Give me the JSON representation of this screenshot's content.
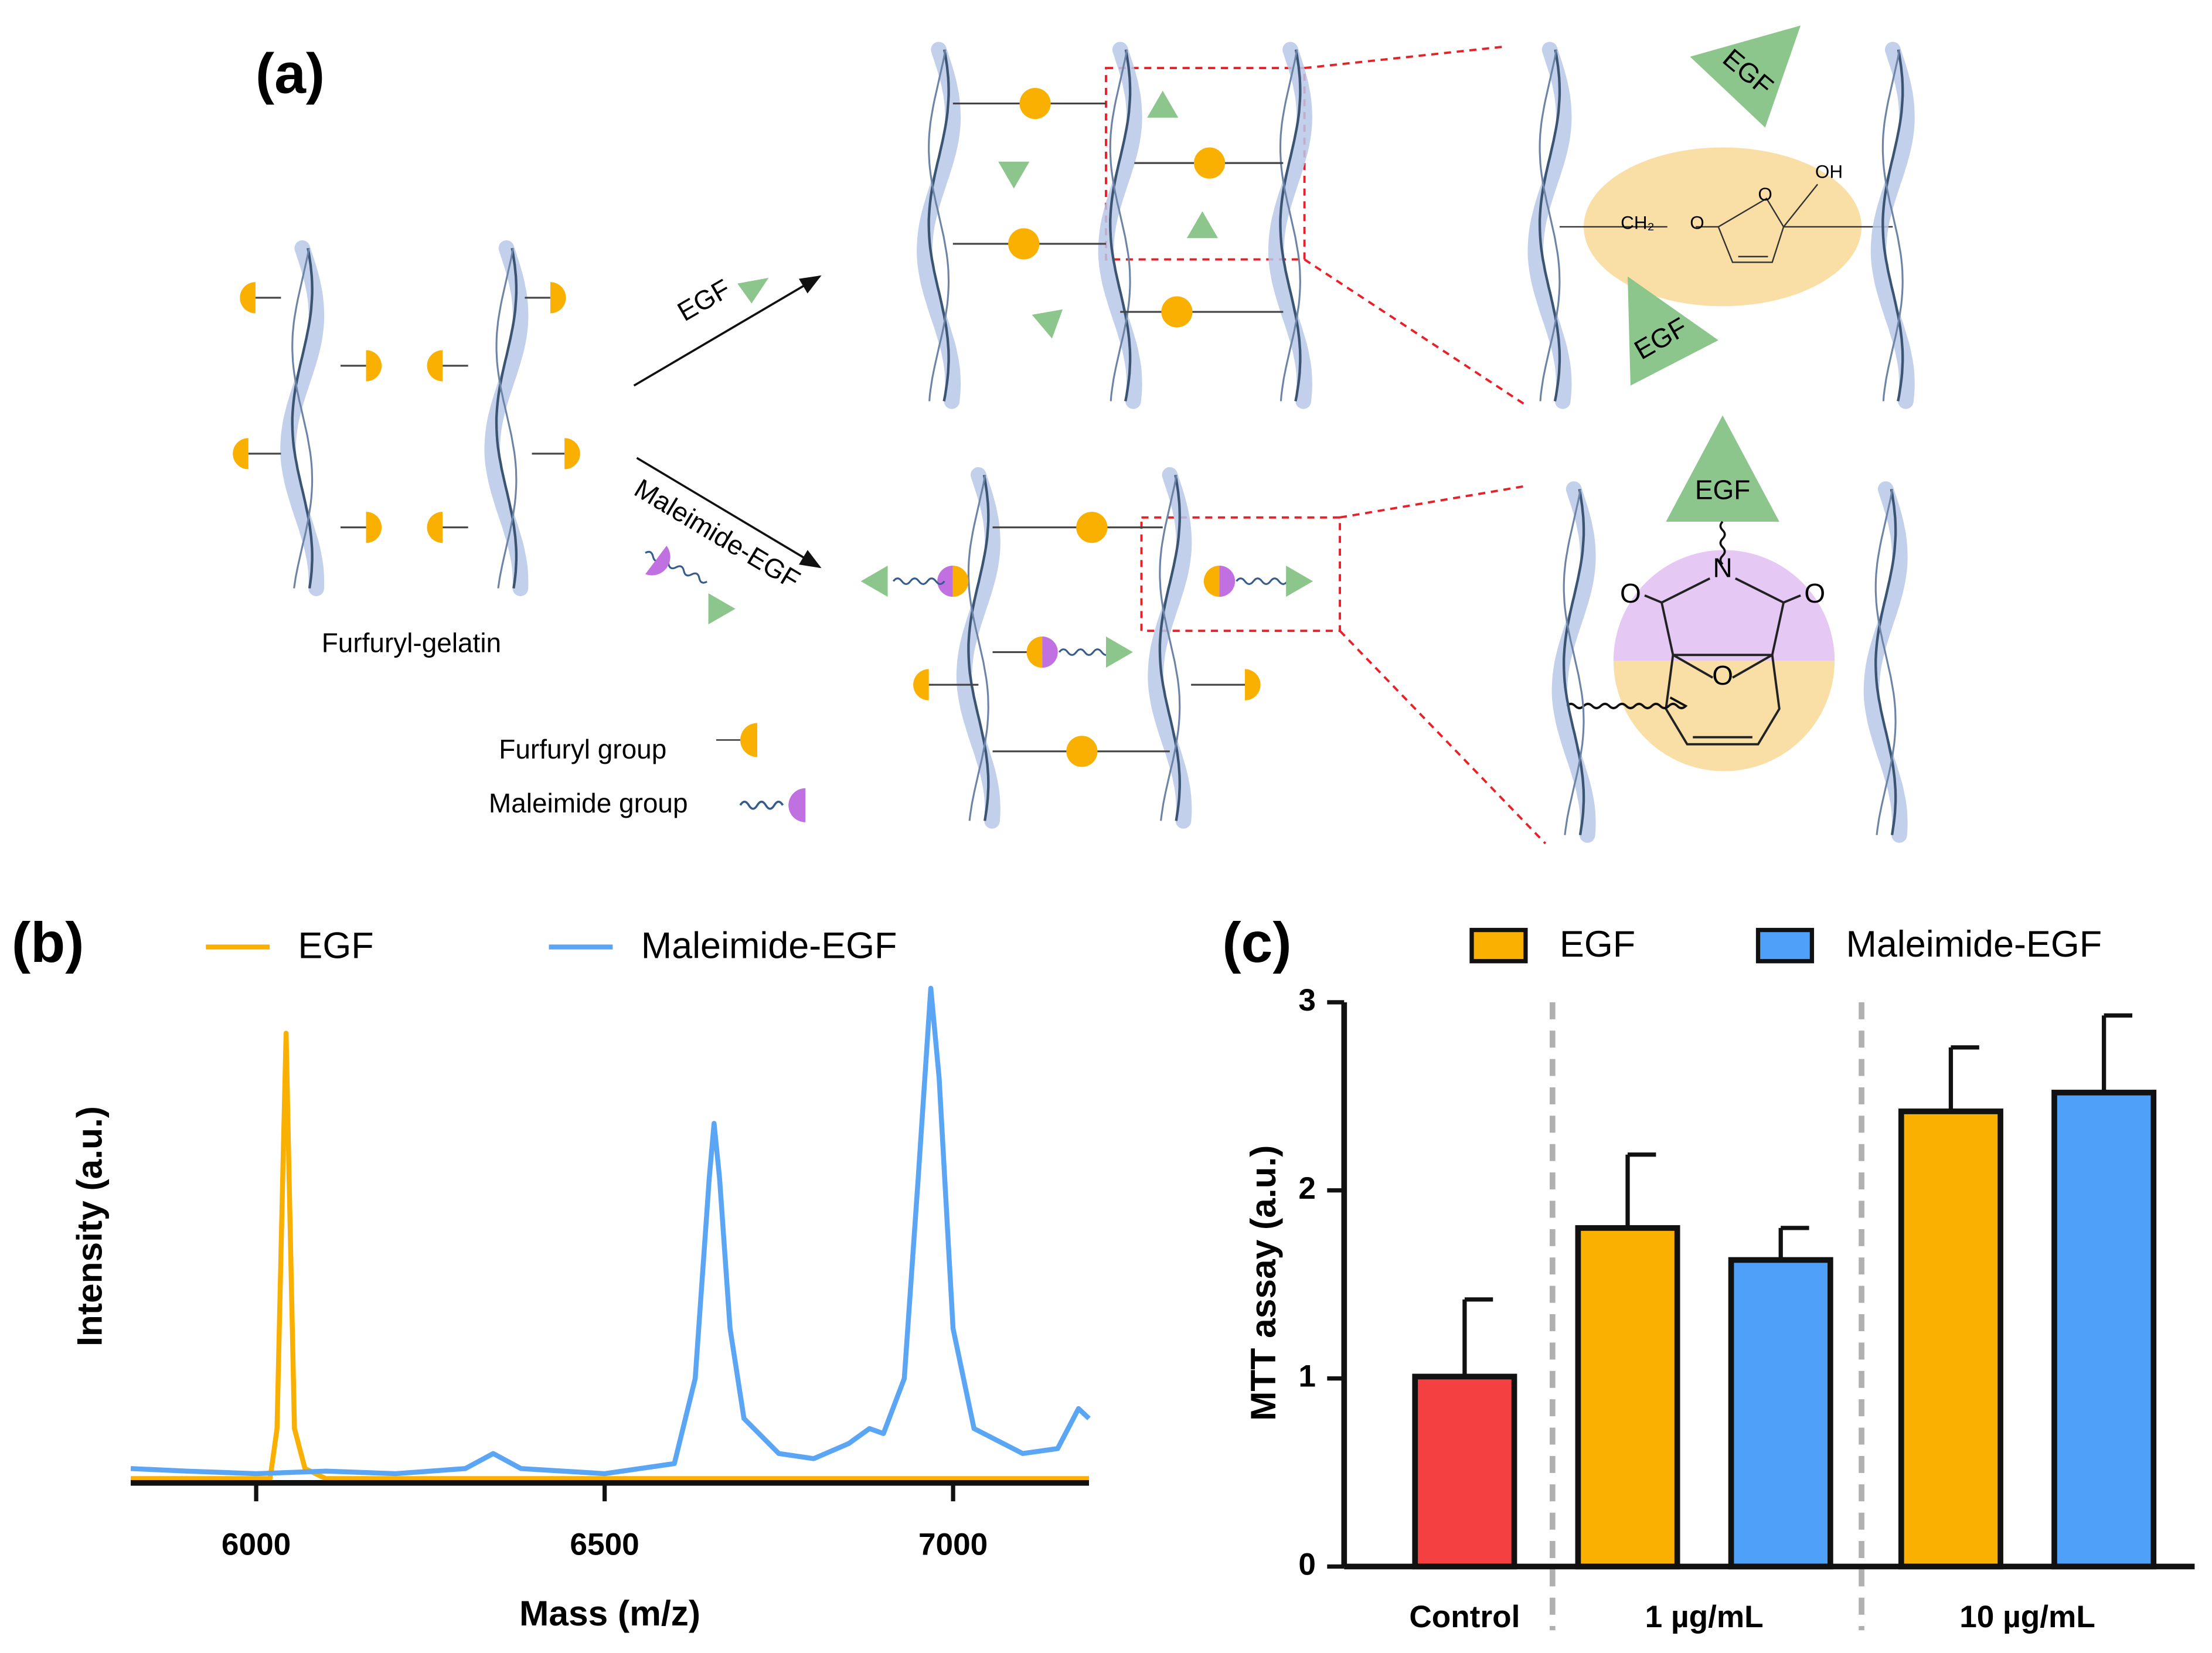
{
  "diagram": {
    "panel_label": "(a)",
    "arrow_top_label": "EGF",
    "arrow_bottom_label": "Maleimide-EGF",
    "gelatin_label": "Furfuryl-gelatin",
    "legend": [
      "Furfuryl group",
      "Maleimide group"
    ],
    "triangle_labels": [
      "EGF",
      "EGF",
      "EGF"
    ],
    "chem_top": [
      "CH₂",
      "O",
      "O",
      "OH"
    ],
    "chem_bottom": [
      "N",
      "O",
      "O",
      "O"
    ]
  },
  "chart_data": [
    {
      "type": "line",
      "panel_label": "(b)",
      "xlabel": "Mass (m/z)",
      "ylabel": "Intensity (a.u.)",
      "xlim": [
        5820,
        7195
      ],
      "xticks": [
        6000,
        6500,
        7000
      ],
      "ylim": [
        0,
        100
      ],
      "series": [
        {
          "name": "EGF",
          "color": "#f9b000",
          "x": [
            5820,
            6020,
            6030,
            6038,
            6043,
            6048,
            6055,
            6070,
            6100,
            7195
          ],
          "values": [
            0,
            0,
            10,
            60,
            89,
            55,
            10,
            2,
            0,
            0
          ]
        },
        {
          "name": "Maleimide-EGF",
          "color": "#5aa6f5",
          "x": [
            5820,
            5900,
            6000,
            6100,
            6200,
            6300,
            6340,
            6380,
            6500,
            6600,
            6630,
            6650,
            6657,
            6665,
            6680,
            6700,
            6750,
            6800,
            6850,
            6880,
            6900,
            6930,
            6950,
            6968,
            6980,
            7000,
            7030,
            7100,
            7150,
            7180,
            7195
          ],
          "values": [
            2,
            1.5,
            1,
            1.5,
            1,
            2,
            5,
            2,
            1,
            3,
            20,
            60,
            71,
            60,
            30,
            12,
            5,
            4,
            7,
            10,
            9,
            20,
            60,
            98,
            80,
            30,
            10,
            5,
            6,
            14,
            12
          ]
        }
      ]
    },
    {
      "type": "bar",
      "panel_label": "(c)",
      "ylabel": "MTT assay (a.u.)",
      "categories": [
        "Control",
        "1 µg/mL",
        "10 µg/mL"
      ],
      "ylim": [
        0,
        3
      ],
      "yticks": [
        0,
        1,
        2,
        3
      ],
      "control": {
        "color": "#f44040",
        "values": [
          1.01,
          null,
          null
        ],
        "errors": [
          0.41,
          null,
          null
        ]
      },
      "series": [
        {
          "name": "EGF",
          "color": "#f9b000",
          "values": [
            null,
            1.8,
            2.42
          ],
          "errors": [
            null,
            0.39,
            0.34
          ]
        },
        {
          "name": "Maleimide-EGF",
          "color": "#4fa0f8",
          "values": [
            null,
            1.63,
            2.52
          ],
          "errors": [
            null,
            0.17,
            0.41
          ]
        }
      ]
    }
  ]
}
